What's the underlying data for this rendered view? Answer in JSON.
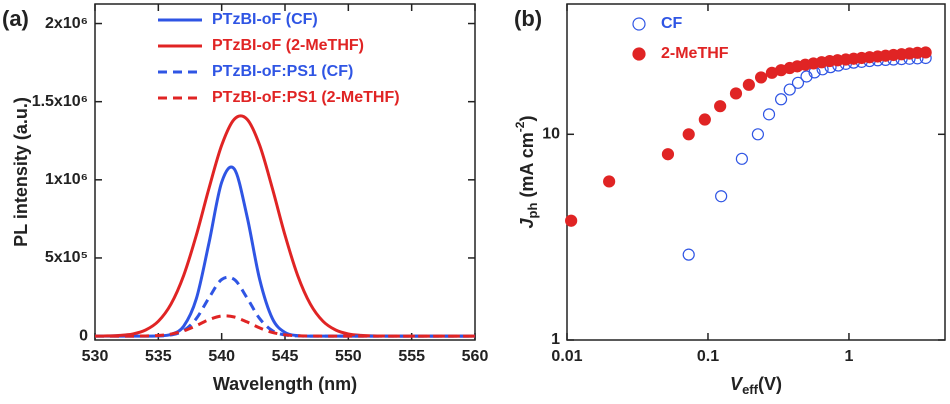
{
  "chart_data": [
    {
      "type": "line",
      "label": "(a)",
      "xlabel": "Wavelength (nm)",
      "ylabel": "PL intensity (a.u.)",
      "xlim": [
        530,
        560
      ],
      "xticks": [
        530,
        535,
        540,
        545,
        550,
        555,
        560
      ],
      "ylim": [
        -25000,
        2125000
      ],
      "yticks": [
        0,
        {
          "value": 500000,
          "label": "5x10⁵"
        },
        {
          "value": 1000000,
          "label": "1x10⁶"
        },
        {
          "value": 1500000,
          "label": "1.5x10⁶"
        },
        {
          "value": 2000000,
          "label": "2x10⁶"
        }
      ],
      "x": [
        530,
        531,
        532,
        533,
        534,
        535,
        536,
        537,
        538,
        539,
        540,
        541,
        542,
        543,
        544,
        545,
        546,
        547,
        548,
        549,
        550,
        551,
        552,
        553,
        554,
        555,
        556,
        557,
        558,
        559,
        560
      ],
      "legend": "upper center",
      "series": [
        {
          "name": "PTzBI-oF (CF)",
          "color": "#2f55e4",
          "dashed": false,
          "values": [
            0,
            0,
            0,
            0,
            0,
            1300,
            10900,
            63100,
            239000,
            597000,
            984000,
            1069000,
            767000,
            363000,
            113000,
            23000,
            3000,
            0,
            0,
            0,
            0,
            0,
            0,
            0,
            0,
            0,
            0,
            0,
            0,
            0,
            0
          ]
        },
        {
          "name": "PTzBI-oF (2-MeTHF)",
          "color": "#e02424",
          "dashed": false,
          "values": [
            300,
            1200,
            4500,
            14000,
            39000,
            95000,
            205000,
            388000,
            646000,
            946000,
            1221000,
            1388000,
            1388000,
            1221000,
            946000,
            646000,
            388000,
            205000,
            95000,
            39000,
            14000,
            4500,
            1200,
            300,
            0,
            0,
            0,
            0,
            0,
            0,
            0
          ]
        },
        {
          "name": "PTzBI-oF:PS1 (CF)",
          "color": "#2f55e4",
          "dashed": true,
          "values": [
            0,
            0,
            0,
            0,
            0,
            1000,
            7300,
            34700,
            112000,
            245000,
            362000,
            362000,
            245000,
            112000,
            34700,
            7300,
            1000,
            0,
            0,
            0,
            0,
            0,
            0,
            0,
            0,
            0,
            0,
            0,
            0,
            0,
            0
          ]
        },
        {
          "name": "PTzBI-oF:PS1 (2-MeTHF)",
          "color": "#e02424",
          "dashed": true,
          "values": [
            0,
            0,
            0,
            0,
            900,
            3900,
            12900,
            33300,
            67100,
            105000,
            128600,
            122300,
            90600,
            52300,
            23500,
            8200,
            2200,
            500,
            0,
            0,
            0,
            0,
            0,
            0,
            0,
            0,
            0,
            0,
            0,
            0,
            0
          ]
        }
      ]
    },
    {
      "type": "scatter",
      "label": "(b)",
      "xlabel_parts": [
        "V",
        "eff",
        "(V)"
      ],
      "ylabel_parts": [
        "J",
        "ph",
        " (mA cm",
        "-2",
        ")"
      ],
      "xscale": "log",
      "yscale": "log",
      "xlim": [
        0.01,
        4.8
      ],
      "xticks": [
        0.01,
        0.1,
        1
      ],
      "ylim": [
        1,
        43
      ],
      "yticks": [
        1,
        10
      ],
      "legend": "upper left",
      "series": [
        {
          "name": "CF",
          "color": "#2f55e4",
          "filled": false,
          "x": [
            0.073,
            0.124,
            0.174,
            0.226,
            0.271,
            0.33,
            0.38,
            0.435,
            0.5,
            0.57,
            0.65,
            0.74,
            0.84,
            0.95,
            1.08,
            1.23,
            1.4,
            1.6,
            1.82,
            2.07,
            2.36,
            2.69,
            3.06,
            3.5
          ],
          "values": [
            2.6,
            5.0,
            7.6,
            10.0,
            12.5,
            14.8,
            16.5,
            17.8,
            19.1,
            20.0,
            20.7,
            21.2,
            21.6,
            22.0,
            22.3,
            22.5,
            22.7,
            22.9,
            23.0,
            23.1,
            23.2,
            23.3,
            23.4,
            23.5
          ]
        },
        {
          "name": "2-MeTHF",
          "color": "#e02424",
          "filled": true,
          "x": [
            0.0107,
            0.0199,
            0.052,
            0.073,
            0.095,
            0.122,
            0.158,
            0.195,
            0.238,
            0.284,
            0.33,
            0.38,
            0.43,
            0.49,
            0.56,
            0.64,
            0.73,
            0.83,
            0.95,
            1.08,
            1.23,
            1.4,
            1.6,
            1.82,
            2.07,
            2.36,
            2.69,
            3.06,
            3.5
          ],
          "values": [
            3.8,
            5.9,
            8.0,
            10.0,
            11.8,
            13.7,
            15.8,
            17.4,
            18.9,
            19.9,
            20.5,
            21.0,
            21.4,
            21.8,
            22.1,
            22.4,
            22.7,
            22.9,
            23.1,
            23.3,
            23.5,
            23.7,
            23.9,
            24.1,
            24.3,
            24.5,
            24.7,
            24.9,
            25.0
          ]
        }
      ]
    }
  ]
}
